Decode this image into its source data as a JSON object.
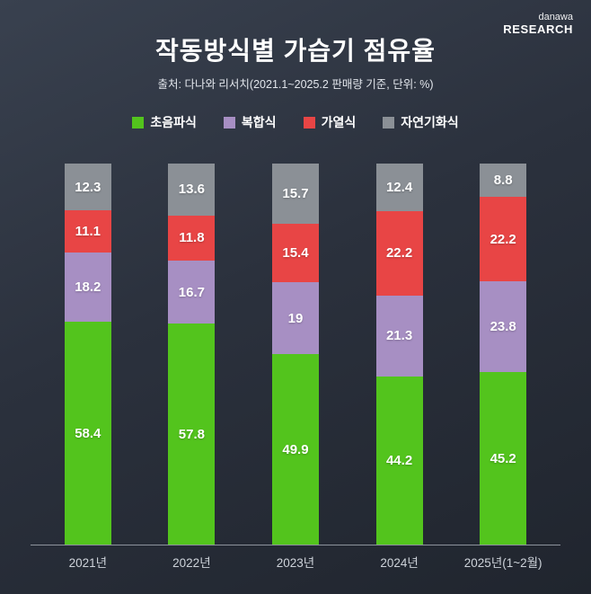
{
  "logo": {
    "top": "danawa",
    "bottom": "RESEARCH"
  },
  "title": "작동방식별 가습기 점유율",
  "subtitle": "출처: 다나와 리서치(2021.1~2025.2 판매량 기준, 단위: %)",
  "chart_data": {
    "type": "bar",
    "stacked": true,
    "title": "작동방식별 가습기 점유율",
    "unit": "%",
    "ylim": [
      0,
      100
    ],
    "legend_position": "top",
    "grid": false,
    "categories": [
      "2021년",
      "2022년",
      "2023년",
      "2024년",
      "2025년(1~2월)"
    ],
    "series": [
      {
        "name": "초음파식",
        "color": "#53c41d",
        "values": [
          58.4,
          57.8,
          49.9,
          44.2,
          45.2
        ]
      },
      {
        "name": "복합식",
        "color": "#a78fc3",
        "values": [
          18.2,
          16.7,
          19,
          21.3,
          23.8
        ]
      },
      {
        "name": "가열식",
        "color": "#e84545",
        "values": [
          11.1,
          11.8,
          15.4,
          22.2,
          22.2
        ]
      },
      {
        "name": "자연기화식",
        "color": "#8b9096",
        "values": [
          12.3,
          13.6,
          15.7,
          12.4,
          8.8
        ]
      }
    ]
  }
}
